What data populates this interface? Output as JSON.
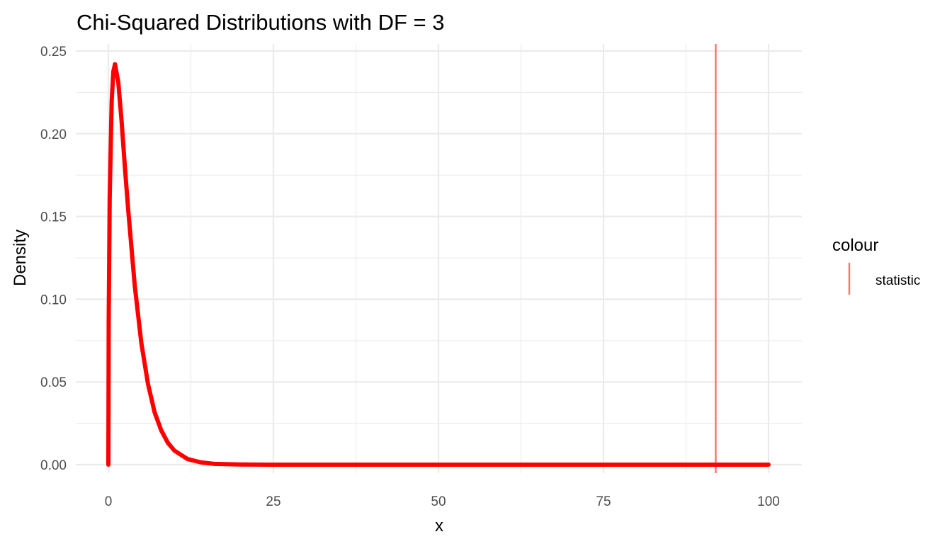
{
  "chart_data": {
    "type": "line",
    "title": "Chi-Squared Distributions with DF = 3",
    "xlabel": "x",
    "ylabel": "Density",
    "xlim": [
      0,
      100
    ],
    "ylim": [
      0,
      0.25
    ],
    "x_ticks": [
      0,
      25,
      50,
      75,
      100
    ],
    "x_tick_labels": [
      "0",
      "25",
      "50",
      "75",
      "100"
    ],
    "y_ticks": [
      0.0,
      0.05,
      0.1,
      0.15,
      0.2,
      0.25
    ],
    "y_tick_labels": [
      "0.00",
      "0.05",
      "0.10",
      "0.15",
      "0.20",
      "0.25"
    ],
    "grid": true,
    "series": [
      {
        "color": "#ff0000",
        "x": [
          0,
          0.05,
          0.2,
          0.5,
          0.75,
          1,
          1.5,
          2,
          2.5,
          3,
          4,
          5,
          6,
          7,
          8,
          9,
          10,
          12,
          14,
          16,
          20,
          25,
          30,
          40,
          50,
          60,
          70,
          80,
          90,
          100
        ],
        "y": [
          0,
          0.0862,
          0.1614,
          0.2197,
          0.2375,
          0.242,
          0.2313,
          0.2076,
          0.1799,
          0.1542,
          0.108,
          0.0733,
          0.0488,
          0.0317,
          0.0208,
          0.0133,
          0.0085,
          0.0034,
          0.0014,
          0.0005,
          0.0001,
          0,
          0,
          0,
          0,
          0,
          0,
          0,
          0,
          0
        ]
      }
    ],
    "vline": {
      "x": 92,
      "color": "#f8766d"
    },
    "legend": {
      "title": "colour",
      "position": "right",
      "items": [
        {
          "label": "statistic",
          "color": "#f8766d"
        }
      ]
    }
  }
}
